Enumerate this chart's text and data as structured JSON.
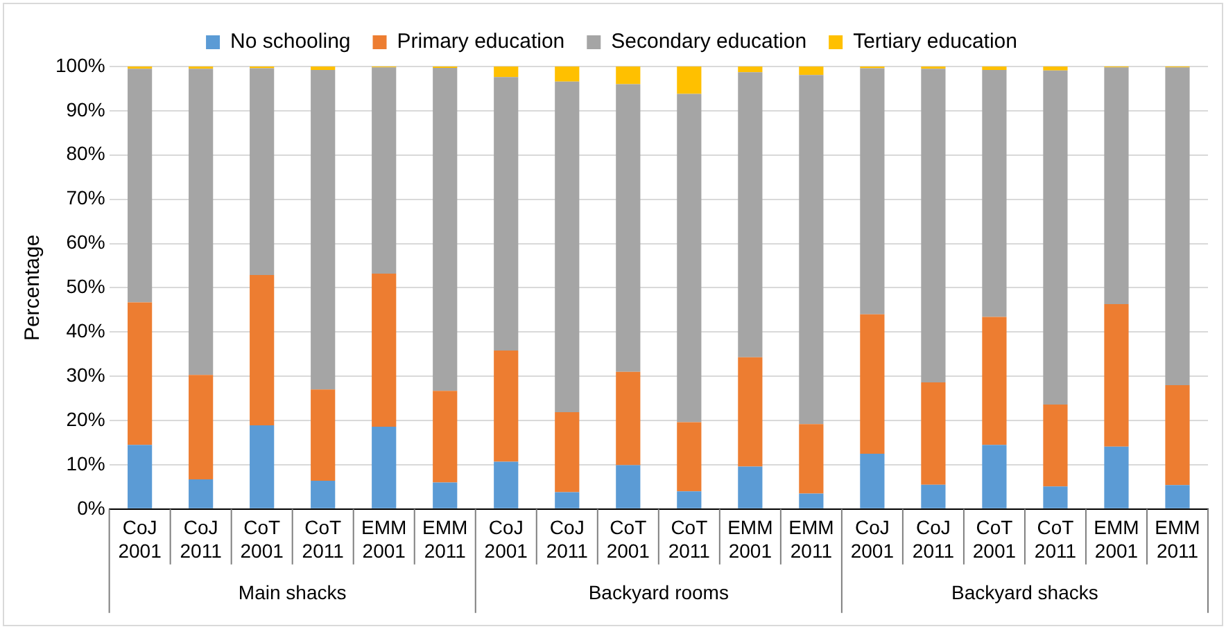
{
  "chart_data": {
    "type": "bar",
    "stacked": true,
    "ylabel": "Percentage",
    "categories": [
      "CoJ 2001",
      "CoJ 2011",
      "CoT 2001",
      "CoT 2011",
      "EMM 2001",
      "EMM 2011",
      "CoJ 2001",
      "CoJ 2011",
      "CoT 2001",
      "CoT 2011",
      "EMM 2001",
      "EMM 2011",
      "CoJ 2001",
      "CoJ 2011",
      "CoT 2001",
      "CoT 2011",
      "EMM 2001",
      "EMM 2011"
    ],
    "series": [
      {
        "name": "No schooling",
        "color": "#5b9bd5",
        "values": [
          14.5,
          6.7,
          18.9,
          6.4,
          18.6,
          6.0,
          10.7,
          3.8,
          9.9,
          4.0,
          9.6,
          3.5,
          12.5,
          5.5,
          14.5,
          5.1,
          14.1,
          5.4
        ]
      },
      {
        "name": "Primary education",
        "color": "#ed7d31",
        "values": [
          32.2,
          23.6,
          34.0,
          20.6,
          34.6,
          20.7,
          25.1,
          18.1,
          21.1,
          15.6,
          24.7,
          15.7,
          31.5,
          23.1,
          28.9,
          18.5,
          32.2,
          22.6
        ]
      },
      {
        "name": "Secondary education",
        "color": "#a5a5a5",
        "values": [
          52.8,
          69.2,
          46.7,
          72.2,
          46.6,
          73.0,
          61.8,
          74.7,
          65.0,
          74.2,
          64.4,
          78.9,
          55.6,
          70.9,
          55.8,
          75.5,
          53.5,
          71.8
        ]
      },
      {
        "name": "Tertiary education",
        "color": "#ffc000",
        "values": [
          0.5,
          0.5,
          0.4,
          0.8,
          0.2,
          0.3,
          2.4,
          3.4,
          4.0,
          6.2,
          1.3,
          1.9,
          0.4,
          0.5,
          0.8,
          0.9,
          0.2,
          0.2
        ]
      }
    ],
    "ylim": [
      0,
      100
    ],
    "yticks": [
      {
        "value": 0,
        "label": "0%"
      },
      {
        "value": 10,
        "label": "10%"
      },
      {
        "value": 20,
        "label": "20%"
      },
      {
        "value": 30,
        "label": "30%"
      },
      {
        "value": 40,
        "label": "40%"
      },
      {
        "value": 50,
        "label": "50%"
      },
      {
        "value": 60,
        "label": "60%"
      },
      {
        "value": 70,
        "label": "70%"
      },
      {
        "value": 80,
        "label": "80%"
      },
      {
        "value": 90,
        "label": "90%"
      },
      {
        "value": 100,
        "label": "100%"
      }
    ],
    "annotations": [
      "Main shacks",
      "Backyard rooms",
      "Backyard shacks"
    ],
    "grid": "y",
    "legend": "top"
  }
}
